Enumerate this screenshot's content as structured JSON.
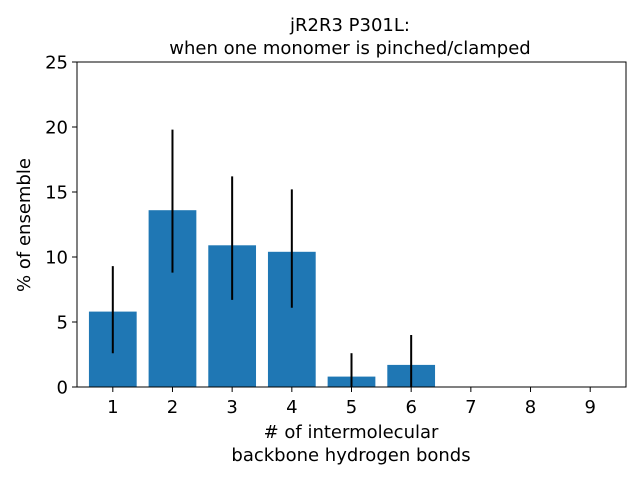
{
  "chart_data": {
    "type": "bar",
    "title_lines": [
      "jR2R3 P301L:",
      "when one monomer is pinched/clamped"
    ],
    "xlabel_lines": [
      "# of intermolecular",
      "backbone hydrogen bonds"
    ],
    "ylabel": "% of ensemble",
    "categories": [
      "1",
      "2",
      "3",
      "4",
      "5",
      "6",
      "7",
      "8",
      "9"
    ],
    "values": [
      5.8,
      13.6,
      10.9,
      10.4,
      0.8,
      1.7,
      0,
      0,
      0
    ],
    "error_low": [
      2.6,
      8.8,
      6.7,
      6.1,
      0.0,
      0.0,
      0,
      0,
      0
    ],
    "error_high": [
      9.3,
      19.8,
      16.2,
      15.2,
      2.6,
      4.0,
      0,
      0,
      0
    ],
    "ylim": [
      0,
      25
    ],
    "yticks": [
      0,
      5,
      10,
      15,
      20,
      25
    ],
    "bar_color": "#1f77b4",
    "error_color": "#000000",
    "grid": false,
    "legend": "none"
  }
}
